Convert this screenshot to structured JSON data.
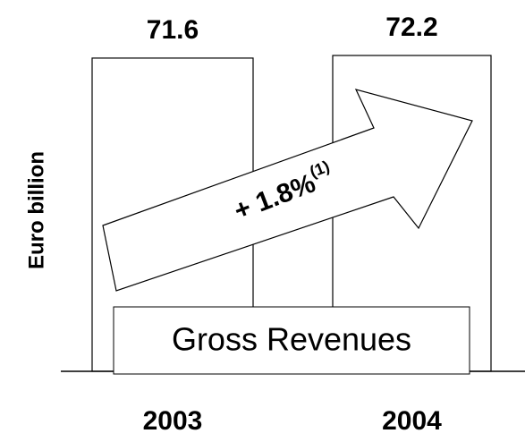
{
  "chart_data": {
    "type": "bar",
    "categories": [
      "2003",
      "2004"
    ],
    "values": [
      71.6,
      72.2
    ],
    "color": "#ffffff",
    "y_label": "Euro billion",
    "label": "Gross Revenues",
    "annotation": "+ 1.8%",
    "annotation_note": "(1)"
  }
}
